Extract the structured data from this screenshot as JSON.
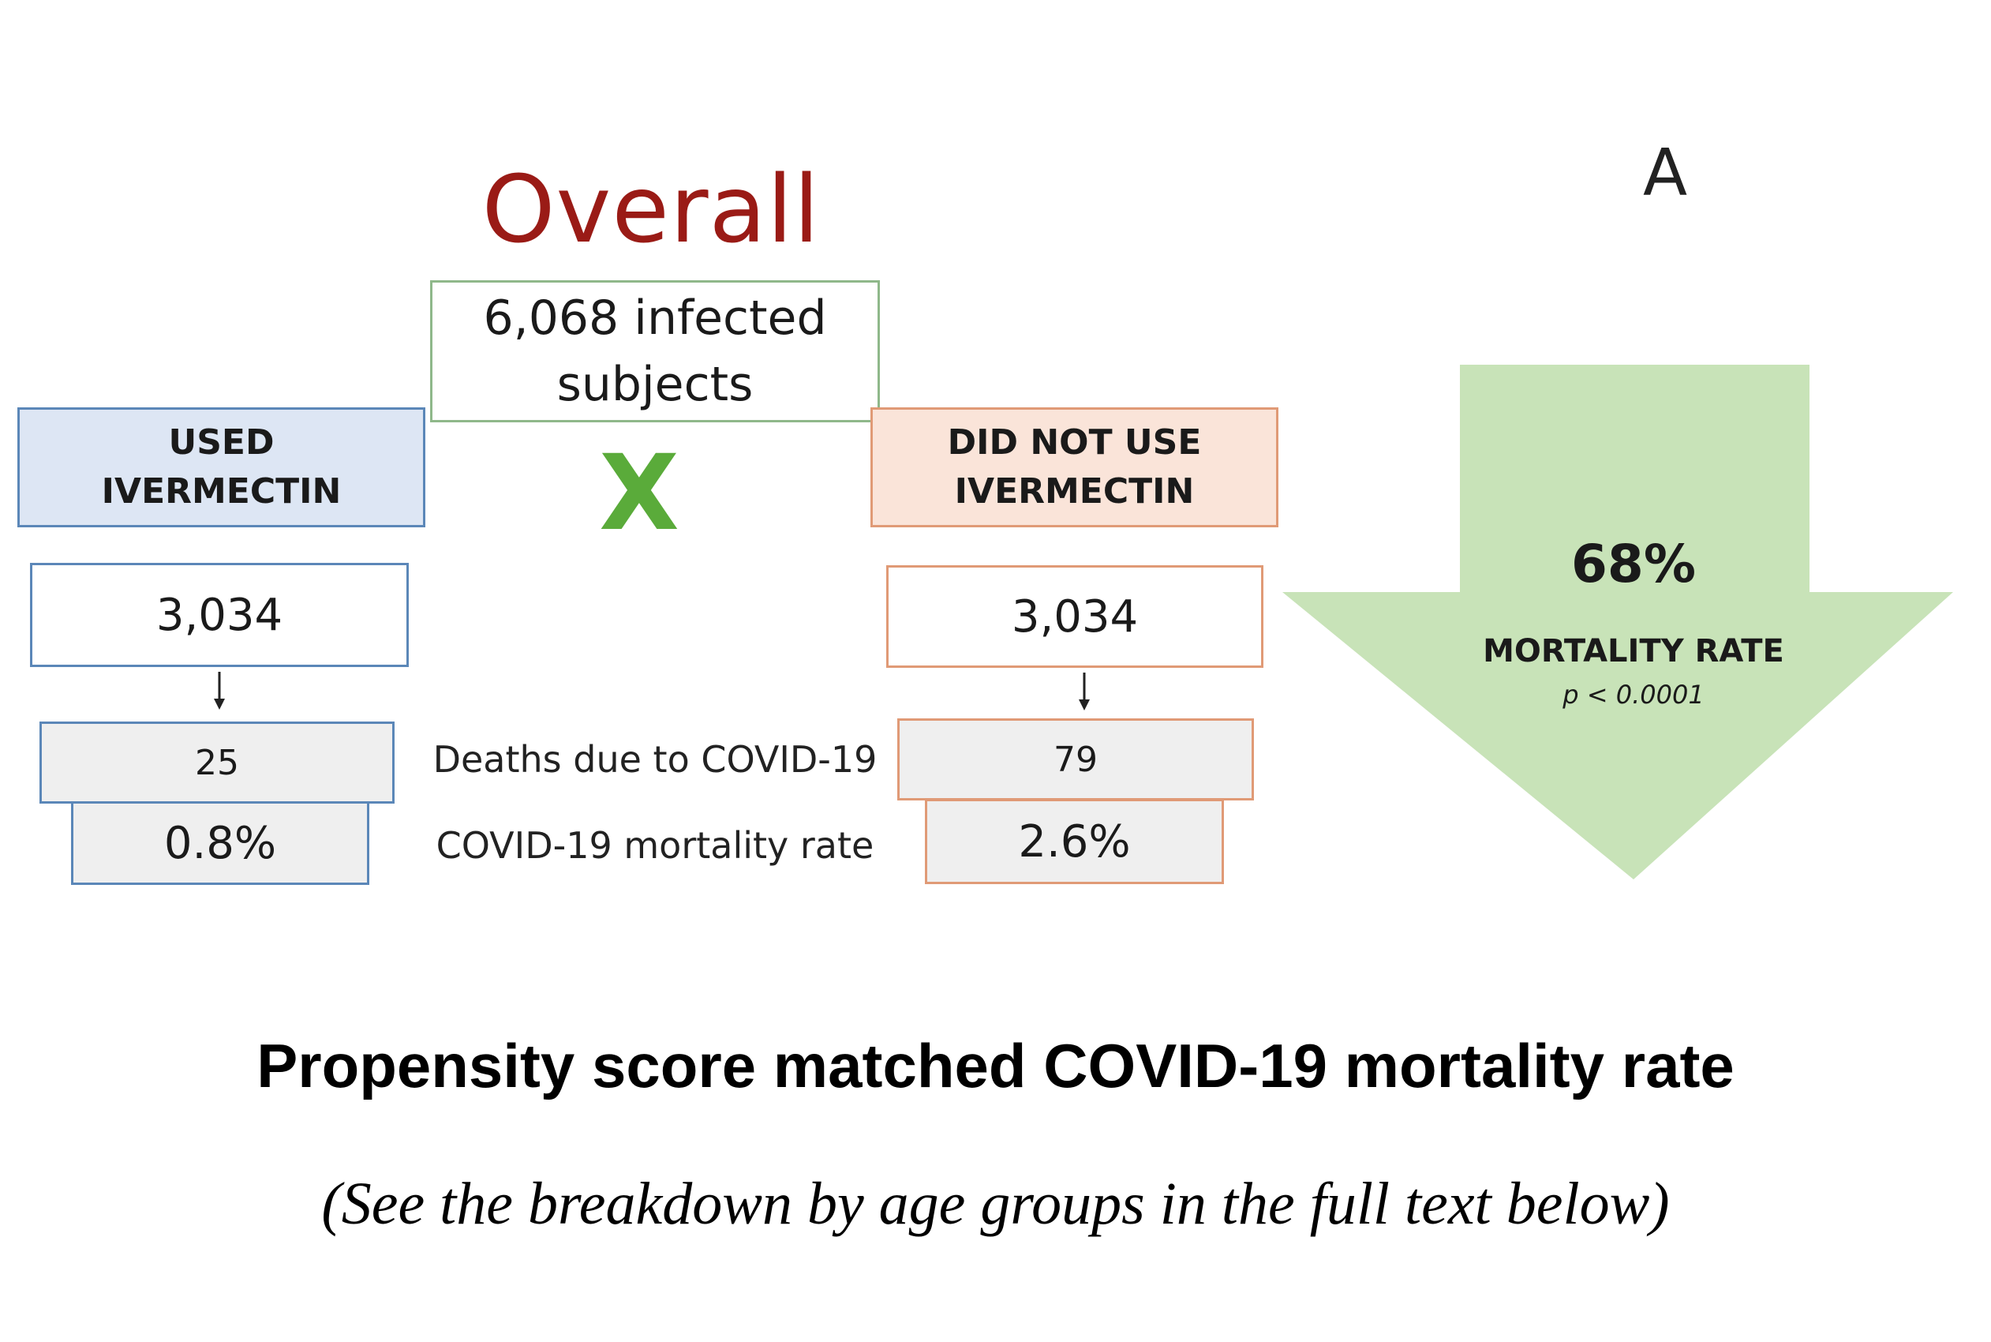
{
  "panel_letter": "A",
  "title": "Overall",
  "total": {
    "line1": "6,068 infected",
    "line2": "subjects"
  },
  "cross_symbol": "X",
  "used": {
    "header_line1": "USED",
    "header_line2": "IVERMECTIN",
    "count": "3,034",
    "deaths": "25",
    "rate": "0.8%"
  },
  "not_used": {
    "header_line1": "DID NOT USE",
    "header_line2": "IVERMECTIN",
    "count": "3,034",
    "deaths": "79",
    "rate": "2.6%"
  },
  "row_labels": {
    "deaths": "Deaths due to COVID-19",
    "rate": "COVID-19 mortality rate"
  },
  "reduction": {
    "percent": "68%",
    "label": "MORTALITY RATE",
    "p_value": "p < 0.0001"
  },
  "caption": "Propensity score matched COVID-19 mortality rate",
  "subcaption": "(See the breakdown by age groups in the full text below)",
  "colors": {
    "title": "#9a1b16",
    "used_border": "#5b87b8",
    "used_fill": "#dde6f4",
    "not_used_border": "#e09a76",
    "not_used_fill": "#fae4d9",
    "cross": "#5aab3a",
    "arrow_fill": "#c8e3b8"
  }
}
